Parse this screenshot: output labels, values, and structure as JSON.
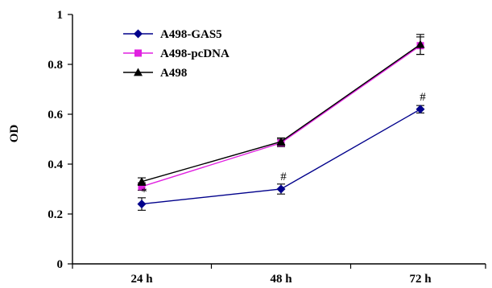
{
  "chart_data": {
    "type": "line",
    "categories": [
      "24 h",
      "48 h",
      "72 h"
    ],
    "ylabel": "OD",
    "xlabel": "",
    "ylim": [
      0,
      1
    ],
    "yticks": [
      0,
      0.2,
      0.4,
      0.6,
      0.8,
      1
    ],
    "ytick_labels": [
      "0",
      "0.2",
      "0.4",
      "0.6",
      "0.8",
      "1"
    ],
    "legend_position": "top-left",
    "grid": false,
    "series": [
      {
        "name": "A498-GAS5",
        "values": [
          0.24,
          0.3,
          0.62
        ],
        "errors": [
          0.025,
          0.02,
          0.015
        ],
        "color": "#00008B",
        "marker": "diamond"
      },
      {
        "name": "A498-pcDNA",
        "values": [
          0.31,
          0.485,
          0.875
        ],
        "errors": [
          0.015,
          0.015,
          0.035
        ],
        "color": "#E020E0",
        "marker": "square"
      },
      {
        "name": "A498",
        "values": [
          0.33,
          0.49,
          0.88
        ],
        "errors": [
          0.015,
          0.015,
          0.04
        ],
        "color": "#000000",
        "marker": "triangle"
      }
    ],
    "annotations": [
      {
        "text": "*",
        "category": "24 h",
        "y": 0.275
      },
      {
        "text": "#",
        "category": "48 h",
        "y": 0.335
      },
      {
        "text": "#",
        "category": "72 h",
        "y": 0.655
      }
    ]
  }
}
